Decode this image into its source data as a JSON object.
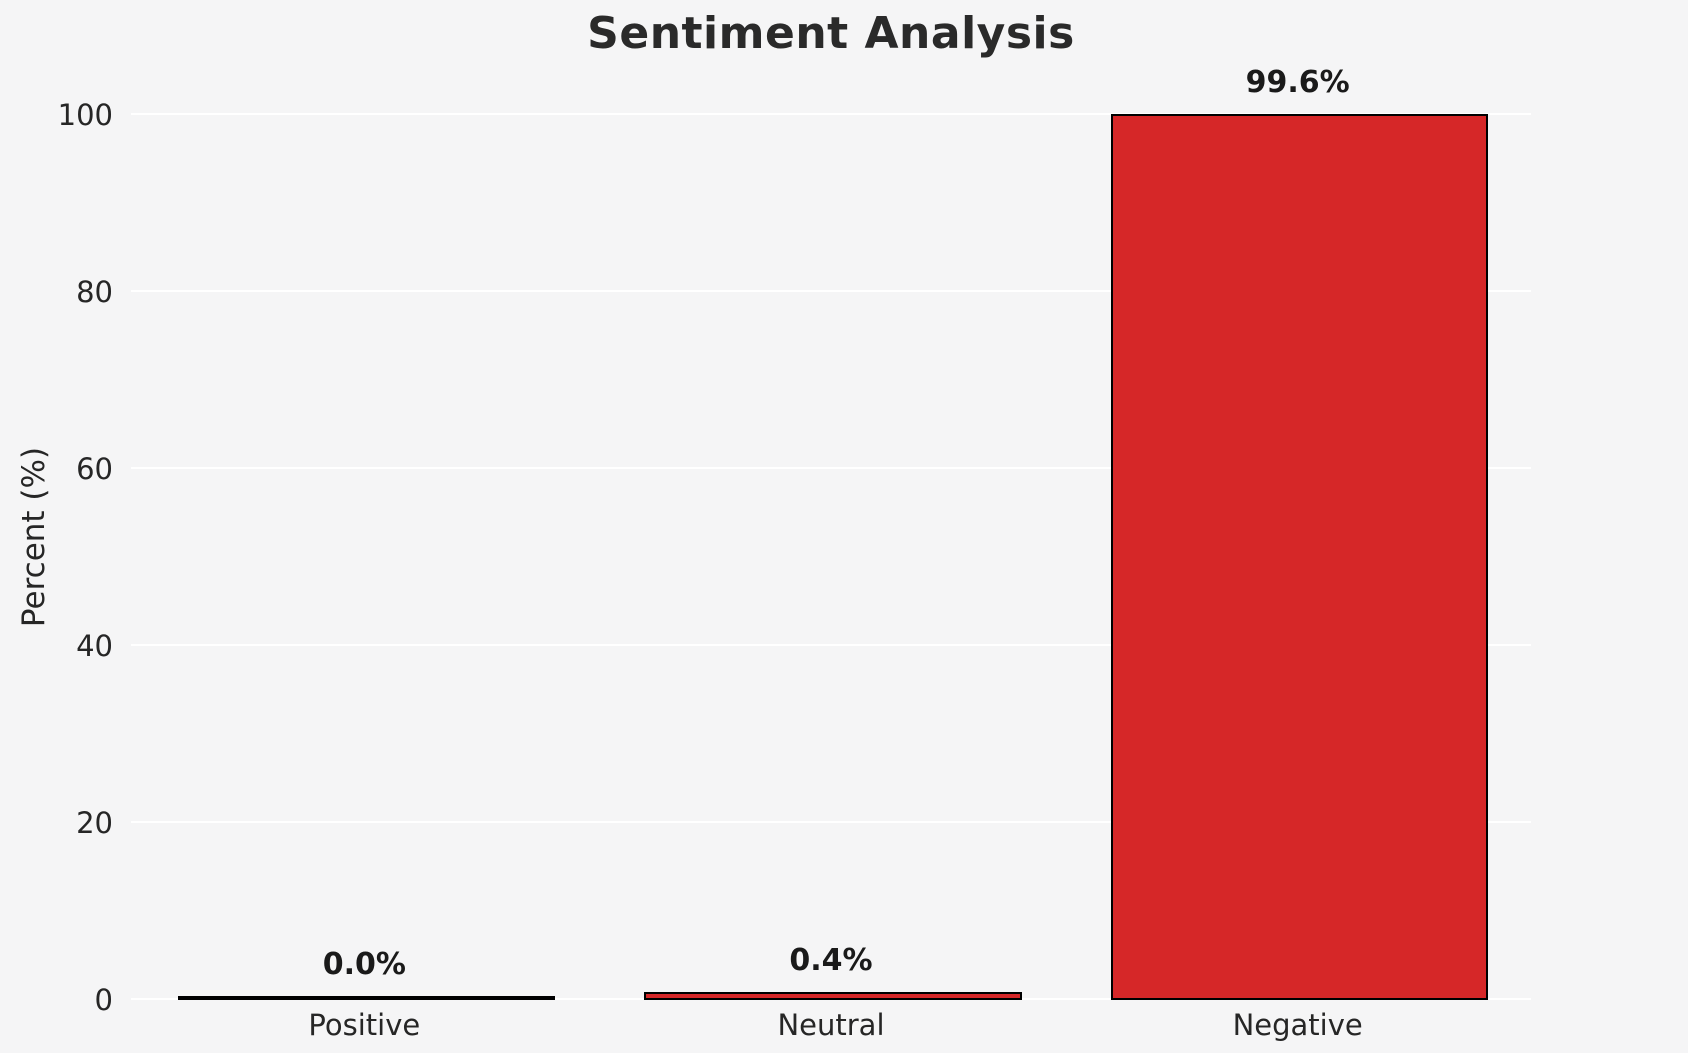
{
  "chart_data": {
    "type": "bar",
    "title": "Sentiment Analysis",
    "xlabel": "",
    "ylabel": "Percent (%)",
    "categories": [
      "Positive",
      "Neutral",
      "Negative"
    ],
    "values": [
      0.0,
      0.4,
      99.6
    ],
    "value_labels": [
      "0.0%",
      "0.4%",
      "99.6%"
    ],
    "yticks": [
      0,
      20,
      40,
      60,
      80,
      100
    ],
    "ylim": [
      0,
      104.5
    ],
    "grid": true,
    "legend": false,
    "bar_color": "#d62728",
    "bar_edge_color": "#000000",
    "background_color": "#f5f5f6",
    "gridline_color": "#ffffff",
    "text_color": "#262626"
  }
}
